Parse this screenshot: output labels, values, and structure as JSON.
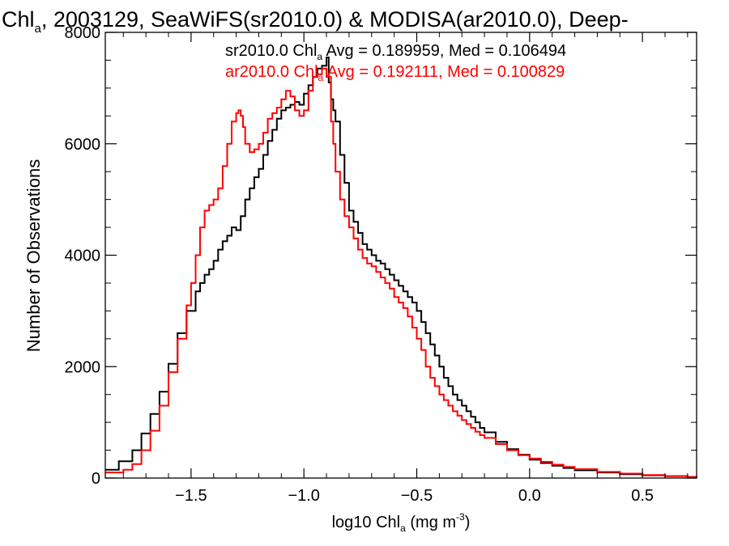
{
  "chart_data": {
    "type": "line",
    "title": {
      "main": "Chl",
      "sub": "a",
      "rest": ", 2003129, SeaWiFS(sr2010.0) & MODISA(ar2010.0), Deep-"
    },
    "xlabel": {
      "pre": "log10 Chl",
      "sub": "a",
      "mid": " (mg m",
      "sup": "-3",
      "post": ")"
    },
    "ylabel": "Number of Observations",
    "xlim": [
      -1.88,
      0.74
    ],
    "ylim": [
      0,
      8000
    ],
    "x_ticks": [
      -1.5,
      -1.0,
      -0.5,
      0.0,
      0.5
    ],
    "x_tick_labels": [
      "−1.5",
      "−1.0",
      "−0.5",
      "0.0",
      "0.5"
    ],
    "y_ticks": [
      0,
      2000,
      4000,
      6000,
      8000
    ],
    "y_tick_labels": [
      "0",
      "2000",
      "4000",
      "6000",
      "8000"
    ],
    "grid": false,
    "legend_position": "top-right",
    "series": [
      {
        "name": "sr2010.0",
        "color": "#000000",
        "x": [
          -1.88,
          -1.82,
          -1.76,
          -1.72,
          -1.68,
          -1.64,
          -1.6,
          -1.56,
          -1.52,
          -1.48,
          -1.46,
          -1.44,
          -1.42,
          -1.4,
          -1.38,
          -1.36,
          -1.34,
          -1.32,
          -1.3,
          -1.28,
          -1.26,
          -1.24,
          -1.22,
          -1.2,
          -1.18,
          -1.16,
          -1.14,
          -1.12,
          -1.1,
          -1.08,
          -1.06,
          -1.04,
          -1.02,
          -1.0,
          -0.98,
          -0.96,
          -0.94,
          -0.92,
          -0.9,
          -0.89,
          -0.88,
          -0.87,
          -0.86,
          -0.84,
          -0.82,
          -0.8,
          -0.78,
          -0.76,
          -0.74,
          -0.72,
          -0.7,
          -0.68,
          -0.66,
          -0.64,
          -0.62,
          -0.6,
          -0.58,
          -0.56,
          -0.54,
          -0.52,
          -0.5,
          -0.48,
          -0.46,
          -0.44,
          -0.42,
          -0.4,
          -0.38,
          -0.36,
          -0.34,
          -0.32,
          -0.3,
          -0.28,
          -0.26,
          -0.24,
          -0.22,
          -0.2,
          -0.15,
          -0.1,
          -0.05,
          0.0,
          0.05,
          0.1,
          0.15,
          0.2,
          0.3,
          0.4,
          0.5,
          0.6,
          0.7,
          0.74
        ],
        "values": [
          150,
          300,
          500,
          800,
          1150,
          1550,
          2050,
          2600,
          3000,
          3350,
          3500,
          3650,
          3750,
          3900,
          4100,
          4250,
          4350,
          4500,
          4450,
          4700,
          5000,
          5200,
          5400,
          5550,
          5800,
          6050,
          6250,
          6450,
          6600,
          6650,
          6700,
          6750,
          6700,
          6900,
          7050,
          7200,
          7350,
          7400,
          7550,
          7100,
          6800,
          6600,
          6400,
          5800,
          5300,
          4800,
          4600,
          4400,
          4200,
          4100,
          4000,
          3900,
          3850,
          3750,
          3650,
          3550,
          3450,
          3350,
          3250,
          3150,
          3000,
          2800,
          2600,
          2400,
          2200,
          2000,
          1800,
          1650,
          1500,
          1400,
          1300,
          1200,
          1100,
          1000,
          900,
          820,
          650,
          520,
          420,
          330,
          270,
          220,
          180,
          140,
          100,
          70,
          50,
          35,
          20,
          0
        ]
      },
      {
        "name": "ar2010.0",
        "color": "#ff0000",
        "x": [
          -1.88,
          -1.8,
          -1.76,
          -1.72,
          -1.68,
          -1.64,
          -1.6,
          -1.56,
          -1.52,
          -1.5,
          -1.48,
          -1.46,
          -1.44,
          -1.42,
          -1.4,
          -1.38,
          -1.36,
          -1.34,
          -1.32,
          -1.3,
          -1.29,
          -1.28,
          -1.27,
          -1.26,
          -1.24,
          -1.22,
          -1.2,
          -1.18,
          -1.16,
          -1.14,
          -1.12,
          -1.1,
          -1.08,
          -1.06,
          -1.04,
          -1.02,
          -1.0,
          -0.98,
          -0.96,
          -0.94,
          -0.92,
          -0.9,
          -0.88,
          -0.87,
          -0.86,
          -0.84,
          -0.82,
          -0.8,
          -0.78,
          -0.76,
          -0.74,
          -0.72,
          -0.7,
          -0.68,
          -0.66,
          -0.64,
          -0.62,
          -0.6,
          -0.58,
          -0.56,
          -0.54,
          -0.52,
          -0.5,
          -0.48,
          -0.46,
          -0.44,
          -0.42,
          -0.4,
          -0.38,
          -0.36,
          -0.34,
          -0.32,
          -0.3,
          -0.28,
          -0.26,
          -0.24,
          -0.22,
          -0.2,
          -0.15,
          -0.1,
          -0.05,
          0.0,
          0.05,
          0.1,
          0.15,
          0.2,
          0.3,
          0.4,
          0.5,
          0.6,
          0.7,
          0.74
        ],
        "values": [
          100,
          150,
          250,
          500,
          850,
          1300,
          1900,
          2500,
          3100,
          3500,
          4000,
          4500,
          4800,
          4900,
          5000,
          5200,
          5600,
          6000,
          6400,
          6550,
          6600,
          6500,
          6300,
          6000,
          5850,
          5900,
          6000,
          6200,
          6450,
          6550,
          6650,
          6800,
          6950,
          6850,
          6600,
          6500,
          6600,
          6950,
          7200,
          7250,
          7350,
          7200,
          6400,
          6000,
          5500,
          5000,
          4700,
          4500,
          4300,
          4100,
          3950,
          3850,
          3800,
          3700,
          3600,
          3500,
          3400,
          3250,
          3150,
          3050,
          2900,
          2700,
          2500,
          2300,
          2000,
          1800,
          1650,
          1500,
          1400,
          1300,
          1200,
          1120,
          1040,
          970,
          900,
          830,
          770,
          720,
          610,
          500,
          410,
          350,
          290,
          240,
          200,
          160,
          110,
          80,
          55,
          35,
          20,
          0
        ]
      }
    ],
    "annotations": [
      {
        "pre": "sr2010.0 Chl",
        "sub": "a",
        "post": " Avg = 0.189959, Med = 0.106494",
        "color": "#000000"
      },
      {
        "pre": "ar2010.0 Chl",
        "sub": "a",
        "post": " Avg = 0.192111, Med = 0.100829",
        "color": "#ff0000"
      }
    ]
  }
}
